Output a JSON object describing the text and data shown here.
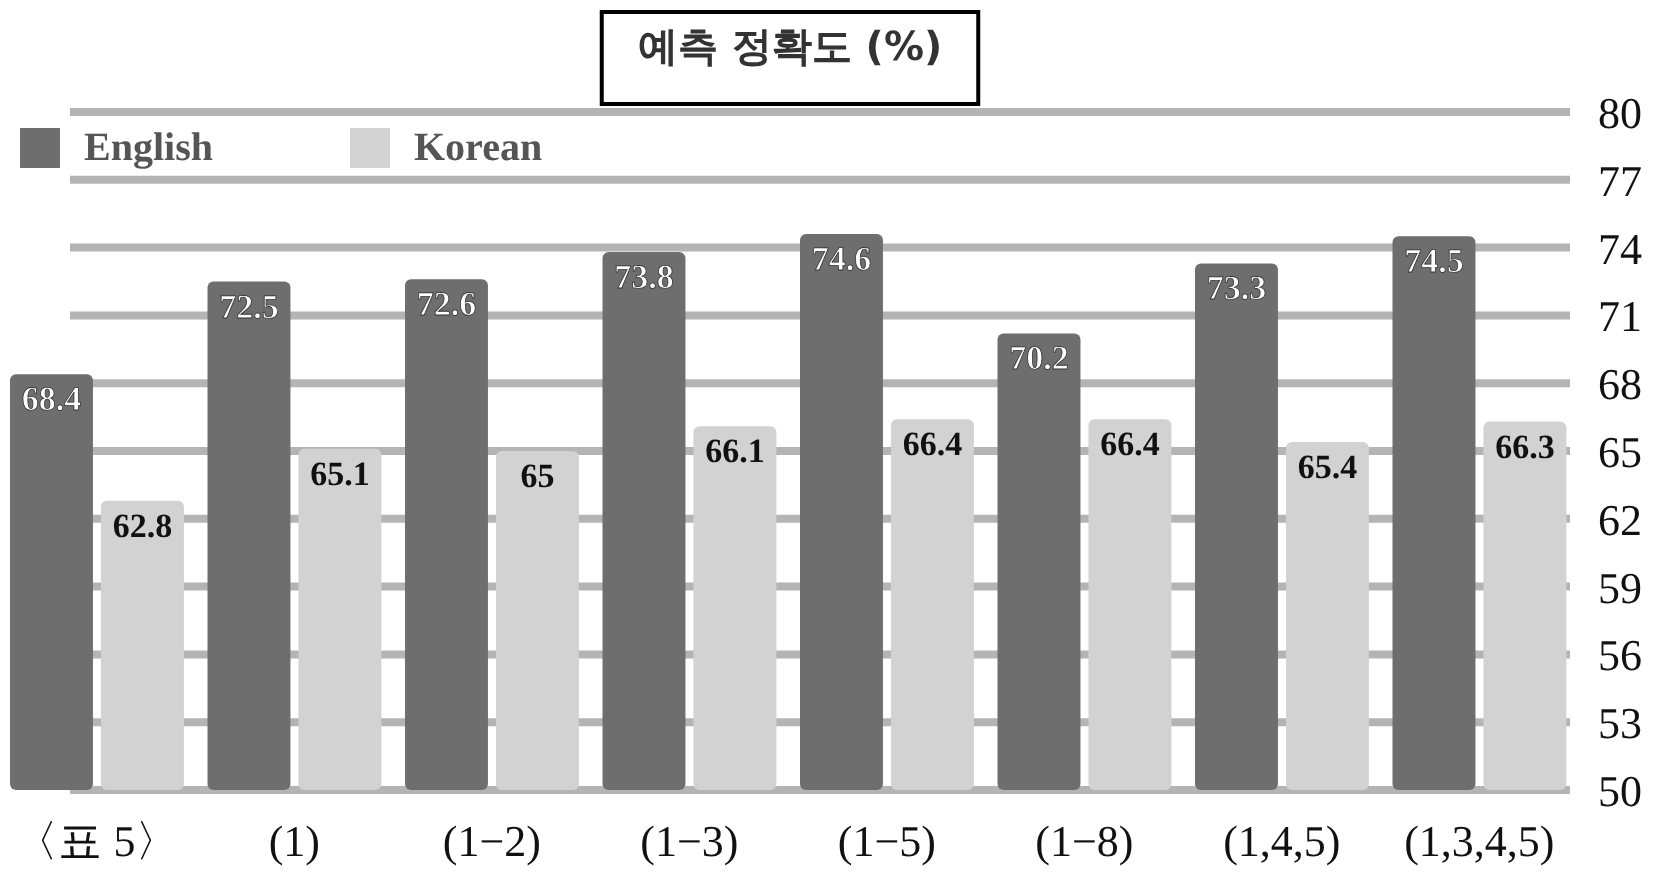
{
  "chart_data": {
    "type": "bar",
    "title": "예측 정확도 (%)",
    "categories": [
      "〈표 5〉",
      "(1)",
      "(1−2)",
      "(1−3)",
      "(1−5)",
      "(1−8)",
      "(1,4,5)",
      "(1,3,4,5)"
    ],
    "series": [
      {
        "name": "English",
        "color": "#6e6e6e",
        "values": [
          68.4,
          72.5,
          72.6,
          73.8,
          74.6,
          70.2,
          73.3,
          74.5
        ]
      },
      {
        "name": "Korean",
        "color": "#d2d2d2",
        "values": [
          62.8,
          65.1,
          65,
          66.1,
          66.4,
          66.4,
          65.4,
          66.3
        ]
      }
    ],
    "ylim": [
      50,
      80
    ],
    "yticks": [
      50,
      53,
      56,
      59,
      62,
      65,
      68,
      71,
      74,
      77,
      80
    ],
    "grid": "y",
    "legend": "top left",
    "data_labels": true
  }
}
